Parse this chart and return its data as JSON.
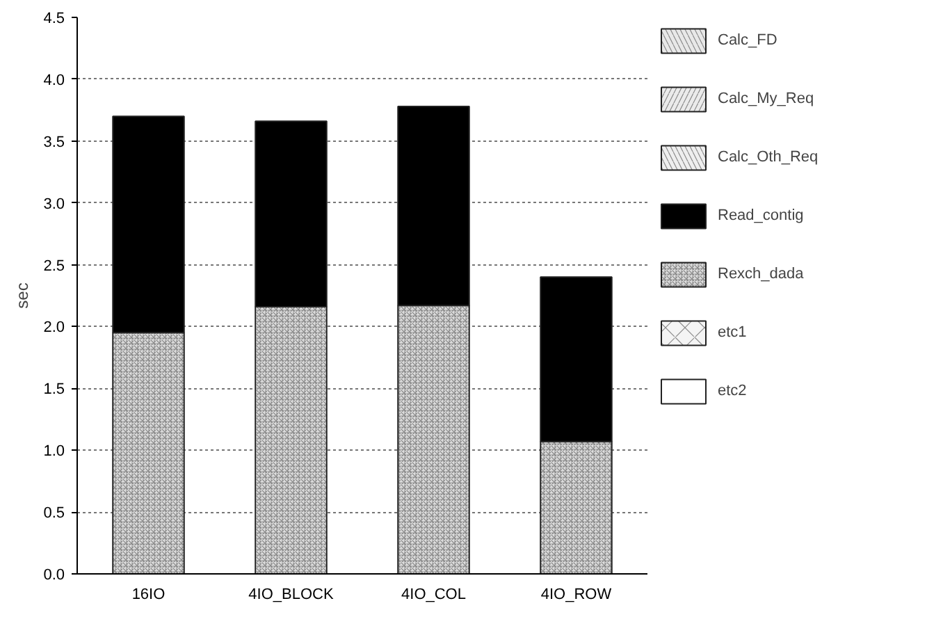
{
  "chart_data": {
    "type": "bar",
    "stacked": true,
    "ylabel": "sec",
    "categories": [
      "16IO",
      "4IO_BLOCK",
      "4IO_COL",
      "4IO_ROW"
    ],
    "ylim": [
      0,
      4.5
    ],
    "yticks": [
      {
        "value": 0,
        "label": "0.0"
      },
      {
        "value": 0.5,
        "label": "0.5"
      },
      {
        "value": 1,
        "label": "1.0"
      },
      {
        "value": 1.5,
        "label": "1.5"
      },
      {
        "value": 2,
        "label": "2.0"
      },
      {
        "value": 2.5,
        "label": "2.5"
      },
      {
        "value": 3,
        "label": "3.0"
      },
      {
        "value": 3.5,
        "label": "3.5"
      },
      {
        "value": 4,
        "label": "4.0"
      },
      {
        "value": 4.5,
        "label": "4.5"
      }
    ],
    "grid": "y",
    "legend": "right",
    "series": [
      {
        "name": "etc2",
        "color": "#ffffff",
        "values": [
          0,
          0,
          0,
          0
        ]
      },
      {
        "name": "etc1",
        "color": "#f4f4f4",
        "values": [
          0,
          0,
          0,
          0
        ]
      },
      {
        "name": "Rexch_dada",
        "color": "#dddddd",
        "values": [
          1.95,
          2.16,
          2.17,
          1.07
        ]
      },
      {
        "name": "Read_contig",
        "color": "#000000",
        "values": [
          1.75,
          1.5,
          1.61,
          1.33
        ]
      },
      {
        "name": "Calc_Oth_Req",
        "color": "#eeeeee",
        "values": [
          0,
          0,
          0,
          0
        ]
      },
      {
        "name": "Calc_My_Req",
        "color": "#ebebeb",
        "values": [
          0,
          0,
          0,
          0
        ]
      },
      {
        "name": "Calc_FD",
        "color": "#e8e8e8",
        "values": [
          0,
          0,
          0,
          0
        ]
      }
    ]
  }
}
